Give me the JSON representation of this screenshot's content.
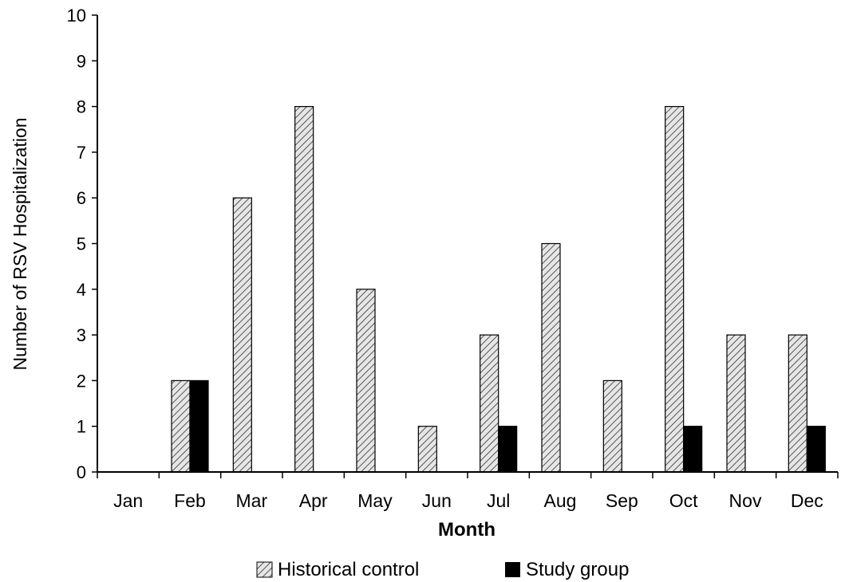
{
  "chart_data": {
    "type": "bar",
    "title": "",
    "xlabel": "Month",
    "ylabel": "Number of RSV Hospitalization",
    "ylim": [
      0,
      10
    ],
    "yticks": [
      0,
      1,
      2,
      3,
      4,
      5,
      6,
      7,
      8,
      9,
      10
    ],
    "categories": [
      "Jan",
      "Feb",
      "Mar",
      "Apr",
      "May",
      "Jun",
      "Jul",
      "Aug",
      "Sep",
      "Oct",
      "Nov",
      "Dec"
    ],
    "series": [
      {
        "name": "Historical control",
        "values": [
          0,
          2,
          6,
          8,
          4,
          1,
          3,
          5,
          2,
          8,
          3,
          3
        ],
        "pattern": "diagonal-hatch",
        "color": "#d9d9d9"
      },
      {
        "name": "Study group",
        "values": [
          0,
          2,
          0,
          0,
          0,
          0,
          1,
          0,
          0,
          1,
          0,
          1
        ],
        "pattern": "solid",
        "color": "#000000"
      }
    ],
    "grid": false,
    "legend_position": "bottom"
  }
}
